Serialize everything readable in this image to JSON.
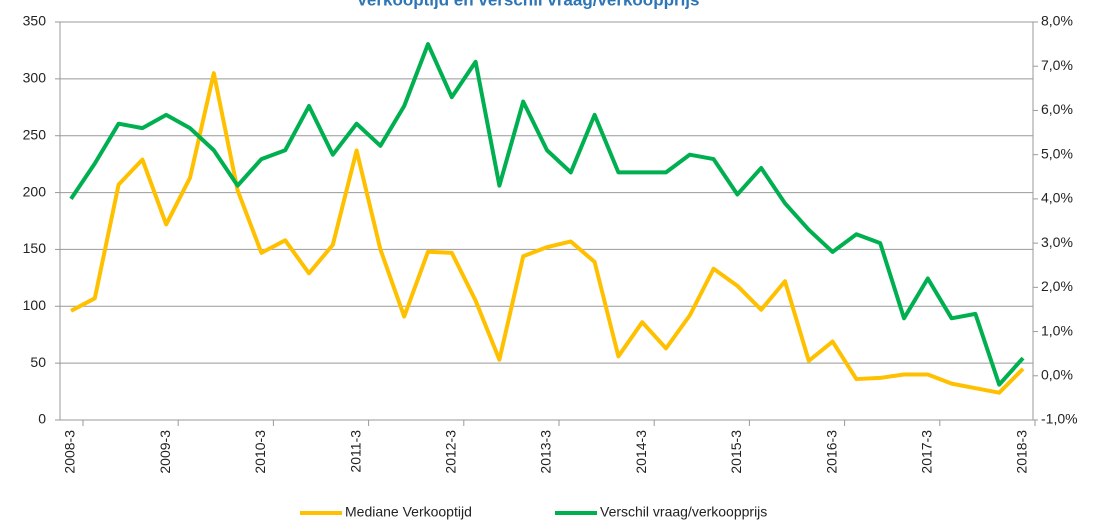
{
  "chart_data": {
    "type": "line",
    "title": "Verkooptijd en verschil vraag/verkoopprijs",
    "categories": [
      "2008-3",
      null,
      null,
      null,
      "2009-3",
      null,
      null,
      null,
      "2010-3",
      null,
      null,
      null,
      "2011-3",
      null,
      null,
      null,
      "2012-3",
      null,
      null,
      null,
      "2013-3",
      null,
      null,
      null,
      "2014-3",
      null,
      null,
      null,
      "2015-3",
      null,
      null,
      null,
      "2016-3",
      null,
      null,
      null,
      "2017-3",
      null,
      null,
      null,
      "2018-3"
    ],
    "series": [
      {
        "name": "Mediane Verkooptijd",
        "color": "#ffc000",
        "values": [
          96,
          107,
          207,
          229,
          172,
          213,
          305,
          202,
          147,
          158,
          129,
          154,
          237,
          150,
          91,
          148,
          147,
          105,
          53,
          144,
          152,
          157,
          139,
          56,
          86,
          63,
          92,
          133,
          118,
          97,
          122,
          52,
          69,
          36,
          37,
          40,
          40,
          32,
          28,
          24,
          45
        ]
      },
      {
        "name": "Verschil vraag/verkoopprijs",
        "color": "#00b050",
        "axis": "y2",
        "values": [
          4.0,
          4.8,
          5.7,
          5.6,
          5.9,
          5.6,
          5.1,
          4.3,
          4.9,
          5.1,
          6.1,
          5.0,
          5.7,
          5.2,
          6.1,
          7.5,
          6.3,
          7.1,
          4.3,
          6.2,
          5.1,
          4.6,
          5.9,
          4.6,
          4.6,
          4.6,
          5.0,
          4.9,
          4.1,
          4.7,
          3.9,
          3.3,
          2.8,
          3.2,
          3.0,
          1.3,
          2.2,
          1.3,
          1.4,
          -0.2,
          0.4
        ]
      }
    ],
    "ylim": [
      0,
      350
    ],
    "yticks": [
      0,
      50,
      100,
      150,
      200,
      250,
      300,
      350
    ],
    "y2lim": [
      -1,
      8
    ],
    "y2ticks": [
      {
        "value": -1,
        "label": "-1,0%"
      },
      {
        "value": 0,
        "label": "0,0%"
      },
      {
        "value": 1,
        "label": "1,0%"
      },
      {
        "value": 2,
        "label": "2,0%"
      },
      {
        "value": 3,
        "label": "3,0%"
      },
      {
        "value": 4,
        "label": "4,0%"
      },
      {
        "value": 5,
        "label": "5,0%"
      },
      {
        "value": 6,
        "label": "6,0%"
      },
      {
        "value": 7,
        "label": "7,0%"
      },
      {
        "value": 8,
        "label": "8,0%"
      }
    ],
    "grid": true,
    "legend": "bottom"
  }
}
